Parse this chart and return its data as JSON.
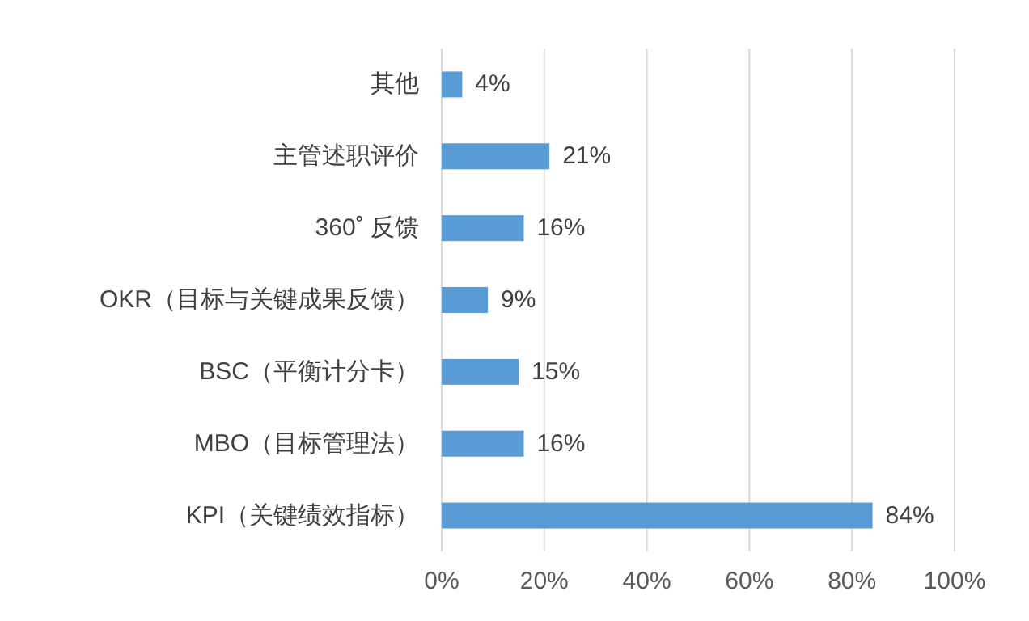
{
  "chart_data": {
    "type": "bar",
    "orientation": "horizontal",
    "categories": [
      "其他",
      "主管述职评价",
      "360˚ 反馈",
      "OKR（目标与关键成果反馈）",
      "BSC（平衡计分卡）",
      "MBO（目标管理法）",
      "KPI（关键绩效指标）"
    ],
    "values": [
      4,
      21,
      16,
      9,
      15,
      16,
      84
    ],
    "value_labels": [
      "4%",
      "21%",
      "16%",
      "9%",
      "15%",
      "16%",
      "84%"
    ],
    "color": "#5b9bd5",
    "xlim": [
      0,
      100
    ],
    "xticks": [
      {
        "value": 0,
        "label": "0%"
      },
      {
        "value": 20,
        "label": "20%"
      },
      {
        "value": 40,
        "label": "40%"
      },
      {
        "value": 60,
        "label": "60%"
      },
      {
        "value": 80,
        "label": "80%"
      },
      {
        "value": 100,
        "label": "100%"
      }
    ],
    "grid": "x"
  }
}
